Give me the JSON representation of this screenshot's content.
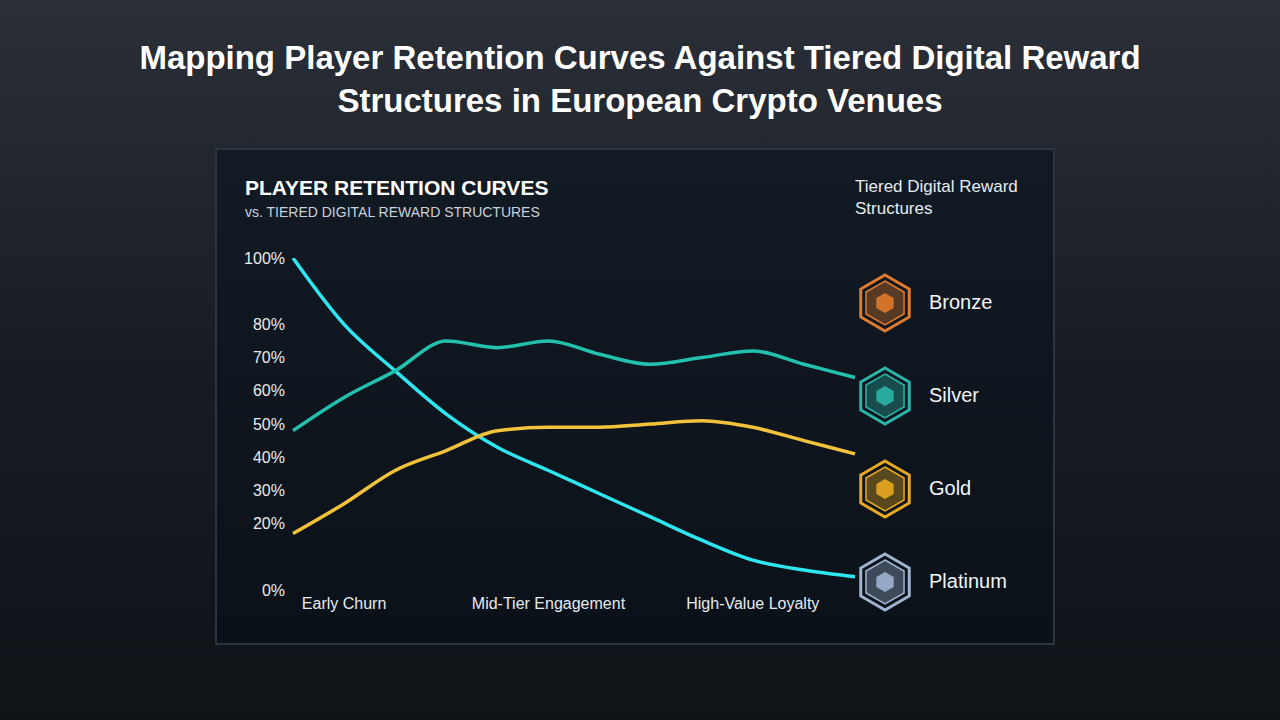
{
  "page_title": "Mapping Player Retention Curves Against Tiered Digital Reward Structures in European Crypto Venues",
  "chart_data": {
    "type": "line",
    "title": "PLAYER RETENTION CURVES",
    "subtitle": "vs. TIERED DIGITAL REWARD STRUCTURES",
    "categories": [
      null,
      "Early Churn",
      null,
      null,
      null,
      "Mid-Tier Engagement",
      null,
      null,
      null,
      "High-Value Loyalty",
      null,
      null
    ],
    "series": [
      {
        "color": "#2ee6f0",
        "values": [
          100,
          80,
          66,
          53,
          43,
          36,
          29,
          22,
          15,
          9,
          6,
          4
        ]
      },
      {
        "color": "#22c1ae",
        "values": [
          48,
          58,
          66,
          75,
          73,
          75,
          71,
          68,
          70,
          72,
          68,
          64
        ]
      },
      {
        "color": "#f2c23a",
        "values": [
          17,
          26,
          36,
          42,
          48,
          49,
          49,
          50,
          51,
          49,
          45,
          41
        ]
      }
    ],
    "ylim": [
      0,
      100
    ],
    "yticks": [
      {
        "value": 0,
        "label": "0%"
      },
      {
        "value": 20,
        "label": "20%"
      },
      {
        "value": 30,
        "label": "30%"
      },
      {
        "value": 40,
        "label": "40%"
      },
      {
        "value": 50,
        "label": "50%"
      },
      {
        "value": 60,
        "label": "60%"
      },
      {
        "value": 70,
        "label": "70%"
      },
      {
        "value": 80,
        "label": "80%"
      },
      {
        "value": 100,
        "label": "100%"
      }
    ],
    "grid": false,
    "legend": "right",
    "legend_title": "Tiered Digital Reward Structures",
    "legend_items": [
      {
        "label": "Bronze",
        "color": "#e07a2e"
      },
      {
        "label": "Silver",
        "color": "#2bb5a8"
      },
      {
        "label": "Gold",
        "color": "#e8a820"
      },
      {
        "label": "Platinum",
        "color": "#9fb4d0"
      }
    ]
  }
}
